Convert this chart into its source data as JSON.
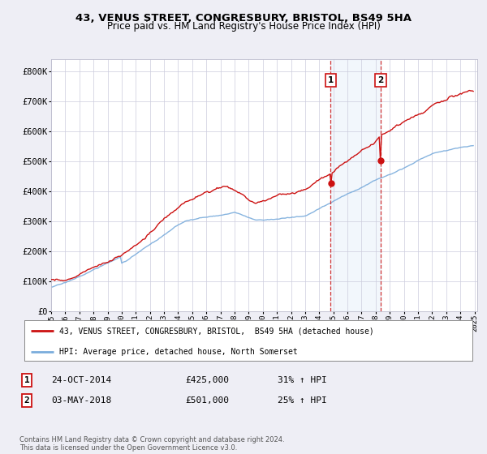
{
  "title": "43, VENUS STREET, CONGRESBURY, BRISTOL, BS49 5HA",
  "subtitle": "Price paid vs. HM Land Registry's House Price Index (HPI)",
  "legend_line1": "43, VENUS STREET, CONGRESBURY, BRISTOL,  BS49 5HA (detached house)",
  "legend_line2": "HPI: Average price, detached house, North Somerset",
  "transaction1_date": "24-OCT-2014",
  "transaction1_price": 425000,
  "transaction1_label": "31% ↑ HPI",
  "transaction2_date": "03-MAY-2018",
  "transaction2_price": 501000,
  "transaction2_label": "25% ↑ HPI",
  "footer": "Contains HM Land Registry data © Crown copyright and database right 2024.\nThis data is licensed under the Open Government Licence v3.0.",
  "hpi_color": "#7aacdc",
  "price_color": "#cc1111",
  "background_color": "#eeeef5",
  "plot_bg_color": "#ffffff",
  "grid_color": "#ccccdd",
  "ylim": [
    0,
    840000
  ],
  "yticks": [
    0,
    100000,
    200000,
    300000,
    400000,
    500000,
    600000,
    700000,
    800000
  ],
  "ytick_labels": [
    "£0",
    "£100K",
    "£200K",
    "£300K",
    "£400K",
    "£500K",
    "£600K",
    "£700K",
    "£800K"
  ],
  "start_year": 1995,
  "end_year": 2025
}
